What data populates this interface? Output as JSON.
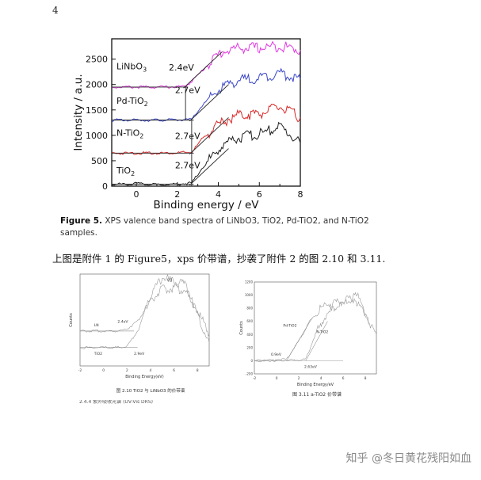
{
  "page_number": "4",
  "caption": {
    "figure_label": "Figure 5.",
    "text": "XPS valence band spectra of LiNbO3, TiO2, Pd-TiO2, and N-TiO2 samples."
  },
  "body_text": "上图是附件 1 的 Figure5，xps 价带谱，抄袭了附件 2 的图 2.10 和 3.11.",
  "watermark": "知乎 @冬日黄花残阳如血",
  "colors": {
    "linbo3": "#e03ae0",
    "pd": "#3a46c8",
    "n": "#d82828",
    "tio2": "#202020",
    "guide": "#333333"
  },
  "chart_data": [
    {
      "type": "line",
      "title": "",
      "xlabel": "Binding energy / eV",
      "ylabel": "Intensity / a.u.",
      "xlim": [
        -1.2,
        8
      ],
      "ylim": [
        0,
        2900
      ],
      "x_ticks": [
        0,
        2,
        4,
        6,
        8
      ],
      "y_ticks": [
        0,
        500,
        1000,
        1500,
        2000,
        2500
      ],
      "series": [
        {
          "name": "LiNbO3",
          "annotation": "2.4eV",
          "color": "#e03ae0",
          "points": [
            [
              -1.2,
              1950
            ],
            [
              0,
              1950
            ],
            [
              1,
              1950
            ],
            [
              2,
              1955
            ],
            [
              2.4,
              1960
            ],
            [
              3,
              2180
            ],
            [
              3.6,
              2440
            ],
            [
              4.2,
              2650
            ],
            [
              5,
              2720
            ],
            [
              6,
              2720
            ],
            [
              7,
              2760
            ],
            [
              8,
              2680
            ]
          ]
        },
        {
          "name": "Pd-TiO2",
          "annotation": "2.7eV",
          "color": "#3a46c8",
          "points": [
            [
              -1.2,
              1300
            ],
            [
              0,
              1300
            ],
            [
              1,
              1300
            ],
            [
              2,
              1305
            ],
            [
              2.7,
              1310
            ],
            [
              3.2,
              1580
            ],
            [
              3.8,
              1820
            ],
            [
              4.4,
              2000
            ],
            [
              5,
              2080
            ],
            [
              6,
              2130
            ],
            [
              7,
              2230
            ],
            [
              8,
              2100
            ]
          ]
        },
        {
          "name": "N-TiO2",
          "annotation": "2.7eV",
          "color": "#d82828",
          "points": [
            [
              -1.2,
              650
            ],
            [
              0,
              650
            ],
            [
              1,
              650
            ],
            [
              2,
              655
            ],
            [
              2.7,
              665
            ],
            [
              3.2,
              920
            ],
            [
              3.8,
              1150
            ],
            [
              4.4,
              1300
            ],
            [
              5,
              1400
            ],
            [
              6,
              1430
            ],
            [
              7,
              1560
            ],
            [
              8,
              1350
            ]
          ]
        },
        {
          "name": "TiO2",
          "annotation": "2.7eV",
          "color": "#202020",
          "points": [
            [
              -1.2,
              30
            ],
            [
              0,
              50
            ],
            [
              1,
              30
            ],
            [
              2,
              40
            ],
            [
              2.7,
              60
            ],
            [
              3.2,
              350
            ],
            [
              3.8,
              640
            ],
            [
              4.4,
              860
            ],
            [
              5,
              960
            ],
            [
              6,
              1020
            ],
            [
              7,
              1180
            ],
            [
              8,
              850
            ]
          ]
        }
      ]
    },
    {
      "type": "line",
      "title": "",
      "xlabel": "Binding Energy(eV)",
      "ylabel": "Counts",
      "xlim": [
        -2,
        9
      ],
      "x_ticks": [
        -2,
        0,
        2,
        4,
        6,
        8
      ],
      "annotations": [
        "VB",
        "2.4eV",
        "LN",
        "TiO2",
        "2.9eV"
      ],
      "series": [
        {
          "name": "LN",
          "points": [
            [
              -2,
              0.38
            ],
            [
              1,
              0.38
            ],
            [
              2,
              0.4
            ],
            [
              3,
              0.5
            ],
            [
              4,
              0.72
            ],
            [
              5,
              0.83
            ],
            [
              6,
              0.85
            ],
            [
              7,
              0.82
            ],
            [
              8,
              0.6
            ],
            [
              9,
              0.35
            ]
          ]
        },
        {
          "name": "TiO2",
          "points": [
            [
              -2,
              0.2
            ],
            [
              1,
              0.2
            ],
            [
              2,
              0.21
            ],
            [
              3,
              0.4
            ],
            [
              4,
              0.78
            ],
            [
              5,
              0.96
            ],
            [
              6,
              0.93
            ],
            [
              7,
              0.88
            ],
            [
              8,
              0.55
            ],
            [
              9,
              0.25
            ]
          ]
        }
      ],
      "caption": "图 2.10 TiO2 与 LiNbO3 的价带谱"
    },
    {
      "type": "line",
      "title": "",
      "xlabel": "Binding Energy/eV",
      "ylabel": "Counts",
      "xlim": [
        -2,
        9
      ],
      "ylim": [
        -200,
        1200
      ],
      "x_ticks": [
        -2,
        0,
        2,
        4,
        6,
        8
      ],
      "y_ticks": [
        -200,
        0,
        200,
        400,
        600,
        800,
        1000,
        1200
      ],
      "annotations": [
        "Pd-TiO2",
        "N-TiO2",
        "0.9eV",
        "2.63eV"
      ],
      "series": [
        {
          "name": "Pd-TiO2",
          "points": [
            [
              -2,
              0
            ],
            [
              0,
              10
            ],
            [
              0.9,
              20
            ],
            [
              2,
              300
            ],
            [
              3,
              600
            ],
            [
              4,
              800
            ],
            [
              5,
              880
            ],
            [
              6,
              900
            ],
            [
              7,
              950
            ],
            [
              8,
              700
            ],
            [
              9,
              400
            ]
          ]
        },
        {
          "name": "N-TiO2",
          "points": [
            [
              -2,
              0
            ],
            [
              0,
              5
            ],
            [
              2,
              10
            ],
            [
              2.63,
              20
            ],
            [
              3.5,
              400
            ],
            [
              4.5,
              700
            ],
            [
              5.5,
              830
            ],
            [
              6.5,
              920
            ],
            [
              7.5,
              1000
            ],
            [
              8.3,
              550
            ]
          ]
        }
      ],
      "caption": "图 3.11 a-TiO2 价带谱"
    }
  ],
  "cut_text": "2.4.4 紫外吸收光谱 (UV-Vis DRS)"
}
